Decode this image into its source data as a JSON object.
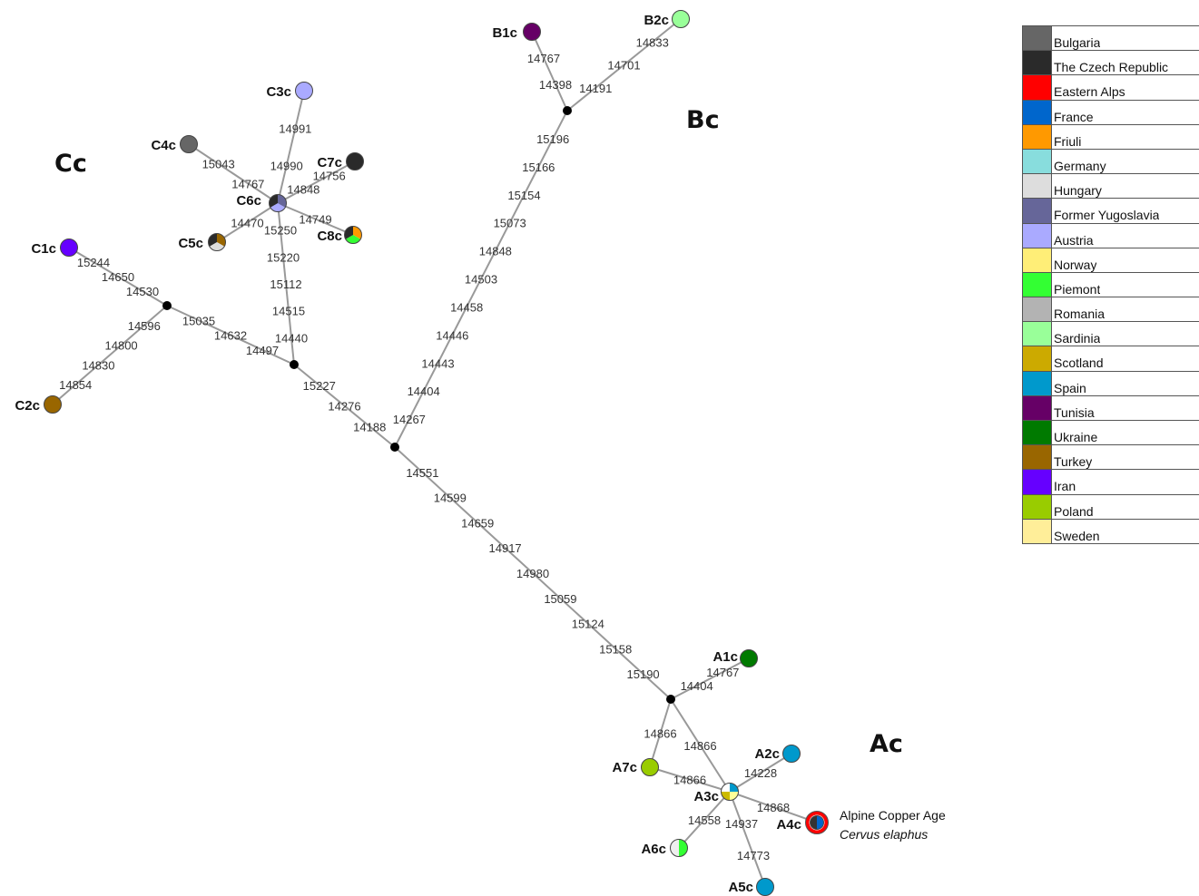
{
  "clades": [
    {
      "id": "Ac",
      "label": "Ac"
    },
    {
      "id": "Bc",
      "label": "Bc"
    },
    {
      "id": "Cc",
      "label": "Cc"
    }
  ],
  "annotation": {
    "line1": "Alpine Copper Age",
    "line2": "Cervus elaphus"
  },
  "nodes": [
    {
      "id": "B1c",
      "label": "B1c",
      "colors": [
        "#660066"
      ]
    },
    {
      "id": "B2c",
      "label": "B2c",
      "colors": [
        "#99ff99"
      ]
    },
    {
      "id": "C3c",
      "label": "C3c",
      "colors": [
        "#aaaaff"
      ]
    },
    {
      "id": "C4c",
      "label": "C4c",
      "colors": [
        "#666666"
      ]
    },
    {
      "id": "C7c",
      "label": "C7c",
      "colors": [
        "#2a2a2a"
      ]
    },
    {
      "id": "C6c",
      "label": "C6c",
      "colors": [
        "#666699",
        "#aaaaff",
        "#2a2a2a"
      ]
    },
    {
      "id": "C5c",
      "label": "C5c",
      "colors": [
        "#996600",
        "#dddddd",
        "#2a2a2a"
      ]
    },
    {
      "id": "C8c",
      "label": "C8c",
      "colors": [
        "#ff9900",
        "#33ff33",
        "#2a2a2a"
      ]
    },
    {
      "id": "C1c",
      "label": "C1c",
      "colors": [
        "#6600ff"
      ]
    },
    {
      "id": "C2c",
      "label": "C2c",
      "colors": [
        "#996600"
      ]
    },
    {
      "id": "A1c",
      "label": "A1c",
      "colors": [
        "#007a00"
      ]
    },
    {
      "id": "A2c",
      "label": "A2c",
      "colors": [
        "#0099cc"
      ]
    },
    {
      "id": "A7c",
      "label": "A7c",
      "colors": [
        "#99cc00"
      ]
    },
    {
      "id": "A3c",
      "label": "A3c",
      "colors": [
        "#0099cc",
        "#ffff99",
        "#ccbb00",
        "#ffffff"
      ]
    },
    {
      "id": "A4c",
      "label": "A4c",
      "colors": [
        "#0066cc",
        "#333333"
      ]
    },
    {
      "id": "A6c",
      "label": "A6c",
      "colors": [
        "#33ff33",
        "#eeeeee"
      ]
    },
    {
      "id": "A5c",
      "label": "A5c",
      "colors": [
        "#0099cc"
      ]
    }
  ],
  "edges": [
    {
      "from": "B1c",
      "to": "nB",
      "mutations": [
        "14767",
        "14398"
      ]
    },
    {
      "from": "B2c",
      "to": "nB",
      "mutations": [
        "14833",
        "14701",
        "14191"
      ]
    },
    {
      "from": "nB",
      "to": "nCenter",
      "mutations": [
        "15196",
        "15166",
        "15154",
        "15073",
        "14848",
        "14503",
        "14458",
        "14446",
        "14443",
        "14404",
        "14267"
      ]
    },
    {
      "from": "C3c",
      "to": "C6c",
      "mutations": [
        "14991",
        "14990"
      ]
    },
    {
      "from": "C4c",
      "to": "C6c",
      "mutations": [
        "15043",
        "14767"
      ]
    },
    {
      "from": "C7c",
      "to": "C6c",
      "mutations": [
        "14756",
        "14848"
      ]
    },
    {
      "from": "C6c",
      "to": "C5c",
      "mutations": [
        "14470"
      ]
    },
    {
      "from": "C6c",
      "to": "C8c",
      "mutations": [
        "14749"
      ]
    },
    {
      "from": "C6c",
      "to": "nC2",
      "mutations": [
        "15250",
        "15220",
        "15112",
        "14515",
        "14440"
      ]
    },
    {
      "from": "C1c",
      "to": "nC1",
      "mutations": [
        "15244",
        "14650",
        "14530"
      ]
    },
    {
      "from": "nC1",
      "to": "C2c",
      "mutations": [
        "14596",
        "14800",
        "14830",
        "14854"
      ]
    },
    {
      "from": "nC1",
      "to": "nC2",
      "mutations": [
        "15035",
        "14632",
        "14497"
      ]
    },
    {
      "from": "nC2",
      "to": "nCenter",
      "mutations": [
        "15227",
        "14276",
        "14188"
      ]
    },
    {
      "from": "nCenter",
      "to": "nA",
      "mutations": [
        "14551",
        "14599",
        "14659",
        "14917",
        "14980",
        "15059",
        "15124",
        "15158",
        "15190"
      ]
    },
    {
      "from": "nA",
      "to": "A1c",
      "mutations": [
        "14404",
        "14767"
      ]
    },
    {
      "from": "nA",
      "to": "A7c",
      "mutations": [
        "14866"
      ]
    },
    {
      "from": "nA",
      "to": "A3c",
      "mutations": [
        "14866"
      ]
    },
    {
      "from": "A7c",
      "to": "A3c",
      "mutations": [
        "14866"
      ]
    },
    {
      "from": "A3c",
      "to": "A2c",
      "mutations": [
        "14228"
      ]
    },
    {
      "from": "A3c",
      "to": "A4c",
      "mutations": [
        "14868"
      ]
    },
    {
      "from": "A3c",
      "to": "A6c",
      "mutations": [
        "14558"
      ]
    },
    {
      "from": "A3c",
      "to": "A5c",
      "mutations": [
        "14937",
        "14773"
      ]
    }
  ],
  "legend": [
    {
      "label": "Bulgaria",
      "color": "#666666"
    },
    {
      "label": "The Czech Republic",
      "color": "#2a2a2a"
    },
    {
      "label": "Eastern Alps",
      "color": "#ff0000"
    },
    {
      "label": "France",
      "color": "#0066cc"
    },
    {
      "label": "Friuli",
      "color": "#ff9900"
    },
    {
      "label": "Germany",
      "color": "#88dddd"
    },
    {
      "label": "Hungary",
      "color": "#dddddd"
    },
    {
      "label": "Former Yugoslavia",
      "color": "#666699"
    },
    {
      "label": "Austria",
      "color": "#aaaaff"
    },
    {
      "label": "Norway",
      "color": "#ffee77"
    },
    {
      "label": "Piemont",
      "color": "#33ff33"
    },
    {
      "label": "Romania",
      "color": "#b3b3b3"
    },
    {
      "label": "Sardinia",
      "color": "#99ff99"
    },
    {
      "label": "Scotland",
      "color": "#ccaa00"
    },
    {
      "label": "Spain",
      "color": "#0099cc"
    },
    {
      "label": "Tunisia",
      "color": "#660066"
    },
    {
      "label": "Ukraine",
      "color": "#007a00"
    },
    {
      "label": "Turkey",
      "color": "#996600"
    },
    {
      "label": "Iran",
      "color": "#6600ff"
    },
    {
      "label": "Poland",
      "color": "#99cc00"
    },
    {
      "label": "Sweden",
      "color": "#ffee99"
    }
  ]
}
